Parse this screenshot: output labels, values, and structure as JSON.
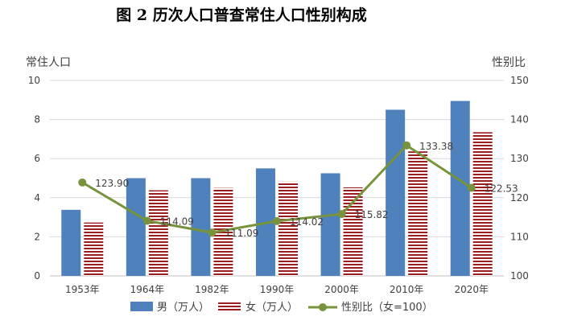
{
  "chart_data": {
    "type": "bar",
    "title": "图 2 历次人口普查常住人口性别构成",
    "ylabel_left": "常住人口",
    "ylabel_right": "性别比",
    "categories": [
      "1953年",
      "1964年",
      "1982年",
      "1990年",
      "2000年",
      "2010年",
      "2020年"
    ],
    "ylim_left": [
      0,
      10
    ],
    "yticks_left": [
      0,
      2,
      4,
      6,
      8,
      10
    ],
    "ylim_right": [
      100,
      150
    ],
    "yticks_right": [
      100,
      110,
      120,
      130,
      140,
      150
    ],
    "grid": true,
    "legend_position": "bottom",
    "series": [
      {
        "name": "男（万人）",
        "type": "bar",
        "axis": "left",
        "color": "#4f81bd",
        "values": [
          3.38,
          5.0,
          5.0,
          5.5,
          5.25,
          8.5,
          8.95
        ]
      },
      {
        "name": "女（万人）",
        "type": "bar",
        "axis": "left",
        "color": "#9b1c1f",
        "pattern": "horizontal-stripes",
        "values": [
          2.73,
          4.38,
          4.5,
          4.82,
          4.53,
          6.37,
          7.35
        ]
      },
      {
        "name": "性别比（女=100）",
        "type": "line",
        "axis": "right",
        "color": "#77933c",
        "values": [
          123.9,
          114.09,
          111.09,
          114.02,
          115.82,
          133.38,
          122.53
        ],
        "labels": [
          "123.90",
          "114.09",
          "111.09",
          "114.02",
          "115.82",
          "133.38",
          "122.53"
        ]
      }
    ]
  }
}
